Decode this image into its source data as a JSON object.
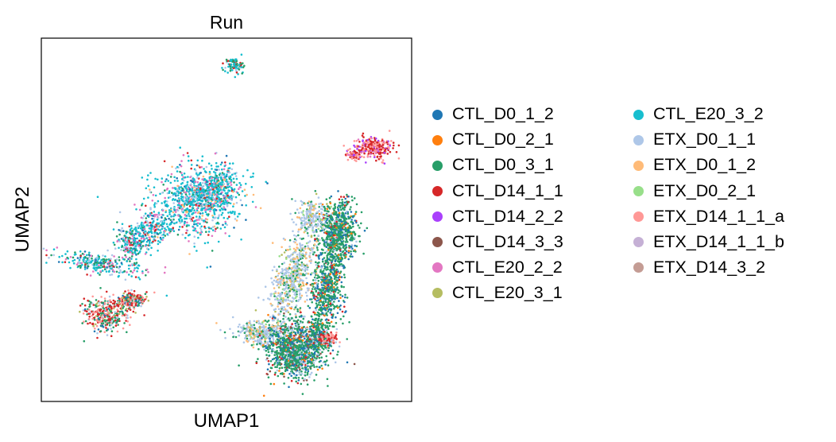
{
  "chart_data": {
    "type": "scatter",
    "title": "Run",
    "xlabel": "UMAP1",
    "ylabel": "UMAP2",
    "xticks": [],
    "yticks": [],
    "grid": false,
    "legend_placement": "right, outside plot, two columns",
    "series": [
      {
        "name": "CTL_D0_1_2",
        "color": "#1f77b4"
      },
      {
        "name": "CTL_D0_2_1",
        "color": "#ff7f0e"
      },
      {
        "name": "CTL_D0_3_1",
        "color": "#279e68"
      },
      {
        "name": "CTL_D14_1_1",
        "color": "#d62728"
      },
      {
        "name": "CTL_D14_2_2",
        "color": "#aa40fc"
      },
      {
        "name": "CTL_D14_3_3",
        "color": "#8c564b"
      },
      {
        "name": "CTL_E20_2_2",
        "color": "#e377c2"
      },
      {
        "name": "CTL_E20_3_1",
        "color": "#b5bd61"
      },
      {
        "name": "CTL_E20_3_2",
        "color": "#17becf"
      },
      {
        "name": "ETX_D0_1_1",
        "color": "#aec7e8"
      },
      {
        "name": "ETX_D0_1_2",
        "color": "#ffbb78"
      },
      {
        "name": "ETX_D0_2_1",
        "color": "#98df8a"
      },
      {
        "name": "ETX_D14_1_1_a",
        "color": "#ff9896"
      },
      {
        "name": "ETX_D14_1_1_b",
        "color": "#c5b0d5"
      },
      {
        "name": "ETX_D14_3_2",
        "color": "#c49c94"
      }
    ],
    "clusters": [
      {
        "id": "top-tiny",
        "mix": [
          [
            8,
            4
          ],
          [
            2,
            3
          ],
          [
            3,
            2
          ],
          [
            9,
            1
          ]
        ]
      },
      {
        "id": "right-upper",
        "mix": [
          [
            3,
            6
          ],
          [
            12,
            5
          ],
          [
            4,
            2
          ],
          [
            6,
            1
          ]
        ]
      },
      {
        "id": "left-large",
        "mix": [
          [
            8,
            10
          ],
          [
            6,
            2
          ],
          [
            9,
            2
          ],
          [
            2,
            1
          ],
          [
            3,
            1
          ],
          [
            0,
            1
          ],
          [
            10,
            1
          ]
        ]
      },
      {
        "id": "left-tail",
        "mix": [
          [
            8,
            4
          ],
          [
            2,
            3
          ],
          [
            9,
            2
          ],
          [
            6,
            2
          ],
          [
            3,
            1
          ],
          [
            0,
            1
          ]
        ]
      },
      {
        "id": "left-bottom",
        "mix": [
          [
            12,
            4
          ],
          [
            3,
            4
          ],
          [
            2,
            4
          ],
          [
            7,
            1
          ],
          [
            9,
            1
          ],
          [
            0,
            1
          ]
        ]
      },
      {
        "id": "right-main-green",
        "mix": [
          [
            2,
            10
          ],
          [
            0,
            3
          ],
          [
            3,
            1
          ],
          [
            9,
            1
          ],
          [
            1,
            1
          ]
        ]
      },
      {
        "id": "right-main-blue",
        "mix": [
          [
            9,
            8
          ],
          [
            10,
            2
          ],
          [
            11,
            1
          ],
          [
            2,
            2
          ],
          [
            7,
            1
          ]
        ]
      },
      {
        "id": "right-bottom-blob",
        "mix": [
          [
            2,
            8
          ],
          [
            0,
            3
          ],
          [
            9,
            2
          ],
          [
            3,
            1
          ],
          [
            1,
            1
          ],
          [
            5,
            1
          ]
        ]
      },
      {
        "id": "right-small-red",
        "mix": [
          [
            3,
            4
          ],
          [
            12,
            3
          ],
          [
            9,
            1
          ]
        ]
      }
    ]
  }
}
